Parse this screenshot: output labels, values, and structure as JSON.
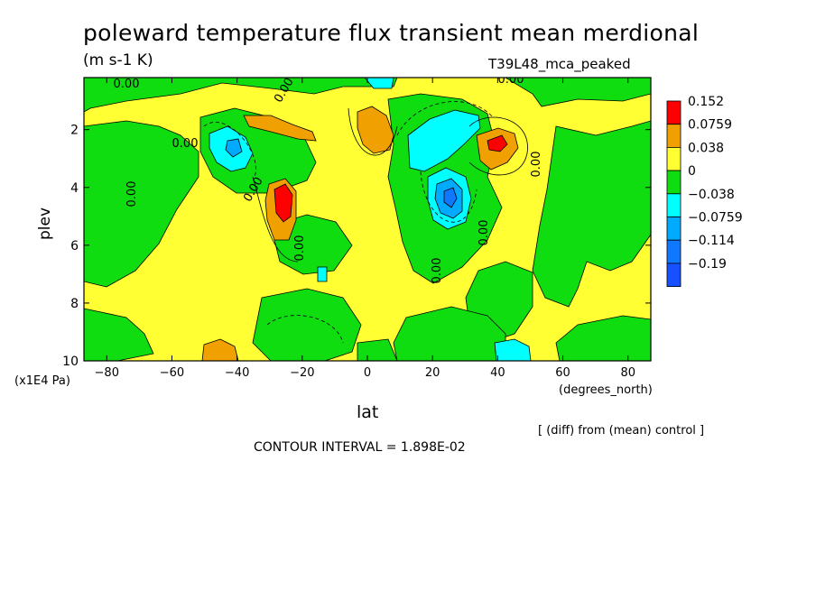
{
  "title": "poleward temperature flux transient mean merdional",
  "units": "(m s-1 K)",
  "run_name": "T39L48_mca_peaked",
  "xlabel": "lat",
  "ylabel": "plev",
  "x_unit": "(degrees_north)",
  "y_unit": "(x1E4 Pa)",
  "diff_note": "[ (diff) from (mean) control ]",
  "contour_interval": "CONTOUR INTERVAL = 1.898E-02",
  "chart_data": {
    "type": "heatmap",
    "x_axis": {
      "label": "lat",
      "unit": "degrees_north",
      "range": [
        -87,
        87
      ],
      "ticks": [
        -80,
        -60,
        -40,
        -20,
        0,
        20,
        40,
        60,
        80
      ]
    },
    "y_axis": {
      "label": "plev",
      "unit": "x1E4 Pa",
      "range": [
        0.2,
        10
      ],
      "ticks": [
        2,
        4,
        6,
        8,
        10
      ],
      "reversed": true
    },
    "legend": {
      "placement": "right",
      "levels": [
        "0.152",
        "0.0759",
        "0.038",
        "0",
        "−0.038",
        "−0.0759",
        "−0.114",
        "−0.19"
      ],
      "colors": [
        "#ff0000",
        "#f0a000",
        "#ffff33",
        "#10dd10",
        "#00ffff",
        "#00aaff",
        "#1077ff",
        "#1650ff"
      ]
    },
    "contour_labels": [
      "0.00",
      "0.00",
      "0.00",
      "0.00",
      "0.00",
      "0.00",
      "0.00",
      "0.00",
      "0.00",
      "0.00"
    ],
    "features": [
      {
        "lat": -27,
        "plev": 4.3,
        "value": 0.16
      },
      {
        "lat": -32,
        "plev": 1.9,
        "value": 0.06
      },
      {
        "lat": 3,
        "plev": 2.0,
        "value": 0.07
      },
      {
        "lat": 44,
        "plev": 2.6,
        "value": 0.09
      },
      {
        "lat": -43,
        "plev": 2.6,
        "value": -0.07
      },
      {
        "lat": 26,
        "plev": 4.0,
        "value": -0.12
      },
      {
        "lat": 23,
        "plev": 2.2,
        "value": -0.05
      },
      {
        "lat": 47,
        "plev": 9.8,
        "value": -0.05
      },
      {
        "lat": -46,
        "plev": 9.7,
        "value": 0.05
      }
    ]
  }
}
